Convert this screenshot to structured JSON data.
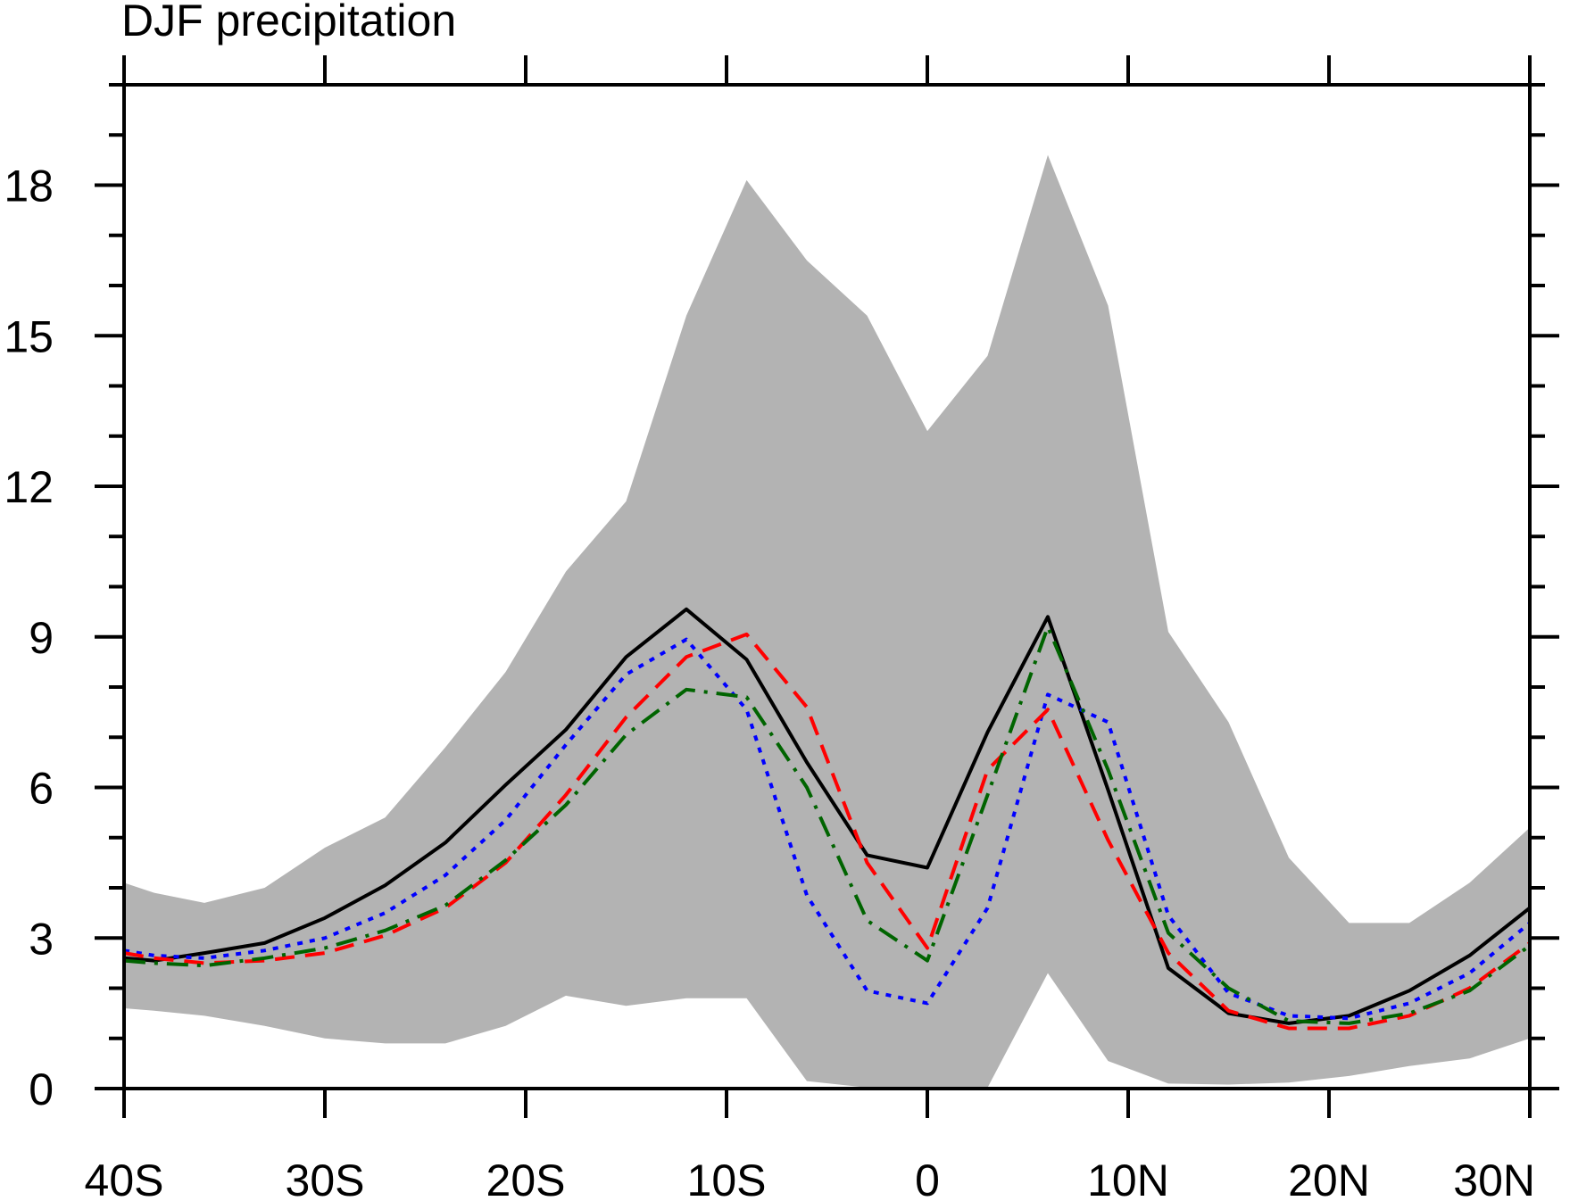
{
  "chart_data": {
    "type": "area",
    "title": "DJF precipitation",
    "xlabel": "",
    "ylabel": "",
    "xlim": [
      -40,
      30
    ],
    "ylim": [
      0,
      20
    ],
    "x_ticks": [
      {
        "value": -40,
        "label": "40S"
      },
      {
        "value": -30,
        "label": "30S"
      },
      {
        "value": -20,
        "label": "20S"
      },
      {
        "value": -10,
        "label": "10S"
      },
      {
        "value": 0,
        "label": "0"
      },
      {
        "value": 10,
        "label": "10N"
      },
      {
        "value": 20,
        "label": "20N"
      },
      {
        "value": 30,
        "label": "30N"
      }
    ],
    "y_ticks": [
      {
        "value": 0,
        "label": "0"
      },
      {
        "value": 3,
        "label": "3"
      },
      {
        "value": 6,
        "label": "6"
      },
      {
        "value": 9,
        "label": "9"
      },
      {
        "value": 12,
        "label": "12"
      },
      {
        "value": 15,
        "label": "15"
      },
      {
        "value": 18,
        "label": "18"
      }
    ],
    "x": [
      -40,
      -38.5,
      -36,
      -33,
      -30,
      -27,
      -24,
      -21,
      -18,
      -15,
      -12,
      -9,
      -6,
      -3,
      0,
      3,
      6,
      9,
      12,
      15,
      18,
      21,
      24,
      27,
      30
    ],
    "band": {
      "color": "#b3b3b3",
      "upper": [
        4.1,
        3.9,
        3.7,
        4.0,
        4.8,
        5.4,
        6.8,
        8.3,
        10.3,
        11.7,
        15.4,
        18.1,
        16.5,
        15.4,
        13.1,
        14.6,
        18.6,
        15.6,
        9.1,
        7.3,
        4.6,
        3.3,
        3.3,
        4.1,
        5.2
      ],
      "lower": [
        1.6,
        1.55,
        1.45,
        1.25,
        1.0,
        0.9,
        0.9,
        1.25,
        1.85,
        1.65,
        1.8,
        1.8,
        0.15,
        0.02,
        0.02,
        0.02,
        2.3,
        0.55,
        0.1,
        0.08,
        0.12,
        0.25,
        0.45,
        0.6,
        1.0
      ]
    },
    "series": [
      {
        "color": "#000000",
        "style": "solid",
        "values": [
          2.6,
          2.55,
          2.7,
          2.9,
          3.4,
          4.05,
          4.9,
          6.05,
          7.15,
          8.6,
          9.55,
          8.55,
          6.5,
          4.65,
          4.4,
          7.1,
          9.4,
          5.95,
          2.4,
          1.5,
          1.3,
          1.45,
          1.95,
          2.65,
          3.6
        ]
      },
      {
        "color": "#0000ff",
        "style": "dotted",
        "values": [
          2.75,
          2.65,
          2.6,
          2.75,
          3.0,
          3.5,
          4.25,
          5.35,
          6.85,
          8.25,
          8.95,
          7.55,
          3.85,
          1.95,
          1.7,
          3.6,
          7.85,
          7.3,
          3.45,
          1.9,
          1.45,
          1.4,
          1.7,
          2.3,
          3.3
        ]
      },
      {
        "color": "#ff0000",
        "style": "dashed",
        "values": [
          2.7,
          2.6,
          2.5,
          2.55,
          2.7,
          3.05,
          3.6,
          4.5,
          5.85,
          7.4,
          8.6,
          9.05,
          7.6,
          4.5,
          2.8,
          6.35,
          7.55,
          4.95,
          2.7,
          1.55,
          1.2,
          1.2,
          1.45,
          2.0,
          2.9
        ]
      },
      {
        "color": "#006400",
        "style": "dashdot",
        "values": [
          2.55,
          2.5,
          2.45,
          2.6,
          2.8,
          3.15,
          3.65,
          4.55,
          5.65,
          7.05,
          7.95,
          7.8,
          6.0,
          3.35,
          2.55,
          5.85,
          9.2,
          6.35,
          3.1,
          2.0,
          1.35,
          1.3,
          1.5,
          1.95,
          2.85
        ]
      }
    ]
  }
}
